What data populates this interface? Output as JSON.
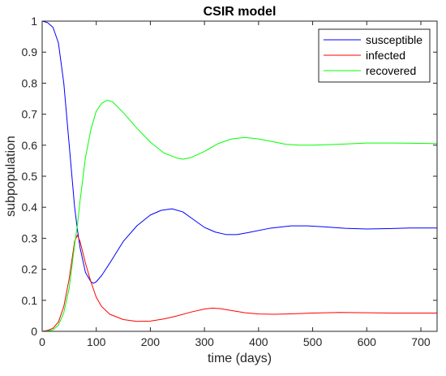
{
  "chart_data": {
    "type": "line",
    "title": "CSIR model",
    "xlabel": "time  (days)",
    "ylabel": "subpopulation",
    "xlim": [
      0,
      730
    ],
    "ylim": [
      0,
      1
    ],
    "xticks": [
      0,
      100,
      200,
      300,
      400,
      500,
      600,
      700
    ],
    "yticks": [
      0,
      0.1,
      0.2,
      0.3,
      0.4,
      0.5,
      0.6,
      0.7,
      0.8,
      0.9,
      1
    ],
    "grid": false,
    "legend_position": "top-right",
    "series": [
      {
        "name": "susceptible",
        "color": "#0000ff",
        "points": [
          [
            0,
            1.0
          ],
          [
            10,
            0.995
          ],
          [
            20,
            0.98
          ],
          [
            30,
            0.93
          ],
          [
            40,
            0.8
          ],
          [
            50,
            0.6
          ],
          [
            60,
            0.4
          ],
          [
            65,
            0.33
          ],
          [
            70,
            0.27
          ],
          [
            80,
            0.19
          ],
          [
            90,
            0.16
          ],
          [
            95,
            0.155
          ],
          [
            100,
            0.16
          ],
          [
            110,
            0.18
          ],
          [
            125,
            0.22
          ],
          [
            150,
            0.29
          ],
          [
            175,
            0.34
          ],
          [
            200,
            0.375
          ],
          [
            220,
            0.39
          ],
          [
            240,
            0.395
          ],
          [
            260,
            0.385
          ],
          [
            280,
            0.36
          ],
          [
            300,
            0.335
          ],
          [
            320,
            0.32
          ],
          [
            340,
            0.312
          ],
          [
            360,
            0.312
          ],
          [
            380,
            0.318
          ],
          [
            420,
            0.332
          ],
          [
            460,
            0.34
          ],
          [
            490,
            0.34
          ],
          [
            520,
            0.337
          ],
          [
            560,
            0.332
          ],
          [
            600,
            0.33
          ],
          [
            640,
            0.331
          ],
          [
            680,
            0.333
          ],
          [
            730,
            0.333
          ]
        ]
      },
      {
        "name": "infected",
        "color": "#ff0000",
        "points": [
          [
            0,
            0.0
          ],
          [
            10,
            0.003
          ],
          [
            20,
            0.01
          ],
          [
            30,
            0.03
          ],
          [
            40,
            0.08
          ],
          [
            50,
            0.17
          ],
          [
            55,
            0.23
          ],
          [
            60,
            0.29
          ],
          [
            65,
            0.31
          ],
          [
            70,
            0.29
          ],
          [
            80,
            0.22
          ],
          [
            90,
            0.16
          ],
          [
            100,
            0.11
          ],
          [
            110,
            0.08
          ],
          [
            125,
            0.055
          ],
          [
            150,
            0.038
          ],
          [
            175,
            0.032
          ],
          [
            200,
            0.033
          ],
          [
            225,
            0.04
          ],
          [
            250,
            0.05
          ],
          [
            275,
            0.062
          ],
          [
            300,
            0.072
          ],
          [
            315,
            0.075
          ],
          [
            330,
            0.073
          ],
          [
            350,
            0.067
          ],
          [
            375,
            0.06
          ],
          [
            400,
            0.056
          ],
          [
            430,
            0.055
          ],
          [
            470,
            0.057
          ],
          [
            500,
            0.059
          ],
          [
            550,
            0.061
          ],
          [
            600,
            0.06
          ],
          [
            650,
            0.059
          ],
          [
            700,
            0.059
          ],
          [
            730,
            0.059
          ]
        ]
      },
      {
        "name": "recovered",
        "color": "#00ff00",
        "points": [
          [
            0,
            0.0
          ],
          [
            10,
            0.001
          ],
          [
            20,
            0.005
          ],
          [
            30,
            0.02
          ],
          [
            40,
            0.06
          ],
          [
            50,
            0.14
          ],
          [
            60,
            0.28
          ],
          [
            65,
            0.34
          ],
          [
            70,
            0.42
          ],
          [
            80,
            0.56
          ],
          [
            90,
            0.65
          ],
          [
            100,
            0.71
          ],
          [
            110,
            0.735
          ],
          [
            120,
            0.745
          ],
          [
            130,
            0.74
          ],
          [
            150,
            0.705
          ],
          [
            175,
            0.655
          ],
          [
            200,
            0.61
          ],
          [
            225,
            0.575
          ],
          [
            250,
            0.558
          ],
          [
            260,
            0.555
          ],
          [
            275,
            0.56
          ],
          [
            300,
            0.58
          ],
          [
            325,
            0.605
          ],
          [
            350,
            0.62
          ],
          [
            375,
            0.625
          ],
          [
            400,
            0.62
          ],
          [
            425,
            0.612
          ],
          [
            450,
            0.603
          ],
          [
            475,
            0.6
          ],
          [
            500,
            0.6
          ],
          [
            550,
            0.603
          ],
          [
            600,
            0.607
          ],
          [
            650,
            0.607
          ],
          [
            700,
            0.606
          ],
          [
            730,
            0.605
          ]
        ]
      }
    ]
  }
}
